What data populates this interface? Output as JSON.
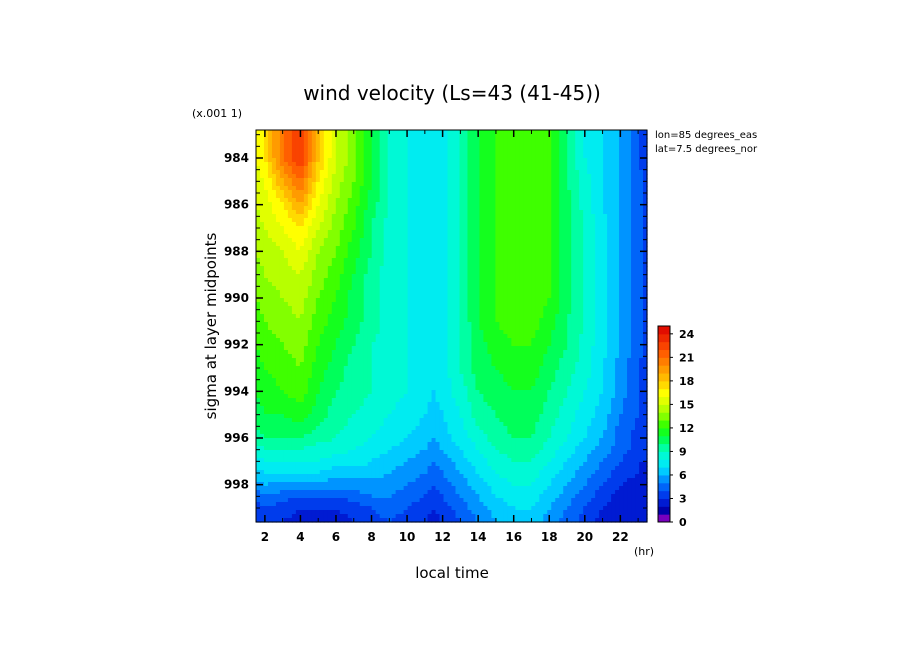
{
  "chart_data": {
    "type": "heatmap",
    "title": "wind velocity (Ls=43 (41-45))",
    "scale_note": "(x.001 1)",
    "xlabel": "local time",
    "xunit": "(hr)",
    "ylabel": "sigma at layer midpoints",
    "annotations": [
      "lon=85 degrees_eas",
      "lat=7.5 degrees_nor"
    ],
    "x_ticks": [
      "2",
      "4",
      "6",
      "8",
      "10",
      "12",
      "14",
      "16",
      "18",
      "20",
      "22"
    ],
    "y_ticks": [
      "984",
      "986",
      "988",
      "990",
      "992",
      "994",
      "996",
      "998"
    ],
    "xlim": [
      1.5,
      23.5
    ],
    "ylim": [
      982.8,
      999.6
    ],
    "colorbar": {
      "ticks": [
        "0",
        "3",
        "6",
        "9",
        "12",
        "15",
        "18",
        "21",
        "24"
      ],
      "range": [
        0,
        25
      ],
      "step": 1
    },
    "x": [
      1.5,
      2,
      3,
      4,
      5,
      6,
      7,
      8,
      9,
      10,
      11,
      11.5,
      12,
      13,
      14,
      15,
      16,
      17,
      18,
      19,
      20,
      21,
      22,
      23,
      23.5
    ],
    "y": [
      982.8,
      984,
      985,
      986,
      987,
      988,
      989,
      990,
      991,
      992,
      993,
      994,
      995,
      996,
      996.5,
      997,
      997.5,
      998,
      998.5,
      999,
      999.6
    ],
    "z": [
      [
        16,
        17,
        21,
        23,
        18,
        15,
        13.5,
        11,
        9,
        8,
        7.5,
        7.5,
        7.5,
        9,
        11,
        12,
        12.5,
        12.5,
        12,
        10,
        8,
        7,
        6,
        4,
        3.5
      ],
      [
        16,
        17,
        21,
        23,
        18,
        15,
        13.5,
        11,
        9,
        8,
        7.5,
        7.5,
        7.5,
        9,
        11,
        12,
        12.5,
        12.5,
        12,
        10,
        8,
        7,
        6,
        4,
        3.5
      ],
      [
        15.5,
        16,
        19,
        21,
        17,
        14.5,
        13,
        11,
        9,
        8,
        7.5,
        7.2,
        7.5,
        9,
        11,
        12,
        12.5,
        12.5,
        12,
        10,
        8.5,
        7,
        6,
        4.5,
        3.5
      ],
      [
        15,
        15.5,
        17,
        19,
        16,
        14,
        12.5,
        10.5,
        9,
        8,
        7.5,
        7,
        7.5,
        9,
        11,
        12,
        12.5,
        12.5,
        12,
        10.5,
        8.5,
        7,
        6,
        4.5,
        3.5
      ],
      [
        14.5,
        15,
        16,
        17,
        15,
        13.5,
        12,
        10,
        8.5,
        8,
        7.5,
        7,
        7.5,
        9,
        11,
        12,
        12.5,
        12.5,
        12,
        10.5,
        9,
        7.5,
        6,
        4.5,
        3.5
      ],
      [
        14,
        14.5,
        15,
        16,
        14,
        13,
        11.5,
        10,
        8.5,
        8,
        7.5,
        7,
        7.5,
        9,
        11,
        12,
        12.5,
        12.5,
        12,
        10.5,
        9,
        7.5,
        6,
        4.5,
        3.5
      ],
      [
        13.5,
        14,
        14.5,
        15,
        13.5,
        12.5,
        11,
        9.5,
        8.5,
        8,
        7.5,
        7,
        7.5,
        9,
        11,
        12,
        12.5,
        12.5,
        12,
        10.5,
        9,
        7.5,
        6,
        4.5,
        3.5
      ],
      [
        13,
        13.5,
        14,
        14.5,
        13,
        12,
        10.5,
        9.5,
        8.5,
        8,
        7.5,
        7,
        7.5,
        9,
        11,
        12,
        12.5,
        12.5,
        12,
        10.5,
        9,
        7.5,
        6,
        4.5,
        3.5
      ],
      [
        12.5,
        13,
        13.5,
        14,
        12.5,
        11.5,
        10.5,
        9.5,
        8.5,
        8,
        7.5,
        7,
        7.5,
        9,
        11,
        12,
        12.5,
        12.5,
        11.5,
        10,
        9,
        7.5,
        6,
        4.5,
        3.5
      ],
      [
        12,
        12.5,
        13,
        13.5,
        12,
        11,
        10,
        9,
        8.5,
        8,
        7.5,
        7,
        7.5,
        9,
        10.5,
        11.5,
        12,
        12,
        11,
        10,
        8.5,
        7.5,
        6,
        4.5,
        3.5
      ],
      [
        11.5,
        12,
        12.5,
        13,
        11.5,
        10.5,
        9.5,
        9,
        8.5,
        8,
        7.5,
        7,
        7.5,
        9,
        10.5,
        11,
        11.5,
        11.5,
        10.5,
        9.5,
        8.5,
        7,
        5.5,
        4,
        3.5
      ],
      [
        11,
        11.5,
        12,
        12.5,
        11,
        10,
        9.5,
        9,
        8.5,
        8,
        7.5,
        7,
        7.5,
        8.5,
        10,
        10.5,
        11,
        11,
        10,
        9,
        8,
        7,
        5.5,
        4,
        3.5
      ],
      [
        10.5,
        11,
        11,
        11.5,
        10.5,
        9.5,
        9,
        8.5,
        8,
        7.5,
        7,
        6.5,
        7,
        8,
        9.5,
        10,
        10.5,
        10.5,
        9.5,
        8.5,
        7.5,
        6.5,
        5,
        4,
        3.5
      ],
      [
        9.5,
        10,
        10,
        10,
        9.5,
        9,
        8.5,
        8,
        7.5,
        7,
        6.5,
        6,
        6.5,
        7.5,
        8.5,
        9.5,
        10,
        10,
        9,
        8,
        7,
        6,
        4.5,
        3.5,
        3
      ],
      [
        8.5,
        9,
        9,
        9,
        8.5,
        8.5,
        8,
        7.5,
        7,
        6.5,
        6,
        5.5,
        6,
        7,
        8,
        9,
        9.5,
        9.5,
        8.5,
        7.5,
        6.5,
        5.5,
        4.5,
        3.5,
        3
      ],
      [
        7.5,
        8,
        8,
        8,
        8,
        7.5,
        7.5,
        7,
        6.5,
        6,
        5.5,
        5,
        5.5,
        6.5,
        7.5,
        8.5,
        9,
        9,
        8,
        7,
        6,
        5,
        4,
        3,
        3
      ],
      [
        6.5,
        7,
        7,
        7,
        7,
        6.5,
        6.5,
        6.5,
        6,
        5.5,
        5,
        4.5,
        5,
        6,
        7,
        8,
        8.5,
        8.5,
        7.5,
        6.5,
        5.5,
        4.5,
        3.5,
        3,
        2.5
      ],
      [
        5.5,
        6,
        5.5,
        5.5,
        5.5,
        5.5,
        5.5,
        5.5,
        5.5,
        5,
        4.5,
        4,
        4.5,
        5.5,
        6.5,
        7.5,
        8,
        8,
        7,
        6,
        5,
        4,
        3,
        2.5,
        2.5
      ],
      [
        4.5,
        5,
        4.5,
        4,
        4,
        4,
        4.5,
        5,
        5,
        4.5,
        4,
        3.5,
        4,
        5,
        6,
        7,
        7.5,
        7.5,
        6.5,
        5.5,
        4.5,
        3.5,
        2.5,
        2.5,
        2
      ],
      [
        3.5,
        4,
        3.5,
        3,
        3,
        3,
        3.5,
        4,
        4.5,
        4,
        3.5,
        3,
        3.5,
        4.5,
        5.5,
        6.5,
        7,
        7,
        6,
        5,
        4,
        3,
        2.5,
        2,
        2
      ],
      [
        3,
        3.5,
        3,
        2.5,
        2.5,
        2.5,
        3,
        3.5,
        4,
        3.5,
        3,
        2.5,
        3,
        4,
        5,
        6,
        6.5,
        6.5,
        5.5,
        4.5,
        3.5,
        2.5,
        2,
        2,
        2
      ]
    ]
  }
}
